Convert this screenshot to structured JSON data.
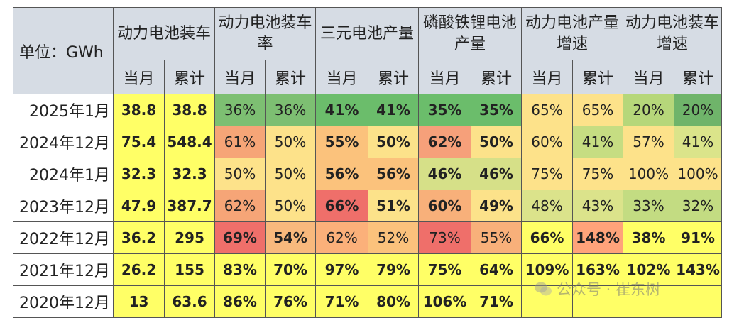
{
  "chart_data": {
    "type": "table",
    "unit_label": "单位：GWh",
    "groups": [
      "动力电池装车",
      "动力电池装车率",
      "三元电池产量",
      "磷酸铁锂电池产量",
      "动力电池产量增速",
      "动力电池装车增速"
    ],
    "subcolumns": [
      "当月",
      "累计"
    ],
    "rows": [
      {
        "label": "2025年1月",
        "cells": [
          "38.8",
          "38.8",
          "36%",
          "36%",
          "41%",
          "41%",
          "35%",
          "35%",
          "65%",
          "65%",
          "20%",
          "20%"
        ]
      },
      {
        "label": "2024年12月",
        "cells": [
          "75.4",
          "548.4",
          "61%",
          "50%",
          "55%",
          "50%",
          "62%",
          "50%",
          "60%",
          "41%",
          "57%",
          "41%"
        ]
      },
      {
        "label": "2024年1月",
        "cells": [
          "32.3",
          "32.3",
          "50%",
          "50%",
          "56%",
          "56%",
          "46%",
          "46%",
          "75%",
          "75%",
          "100%",
          "100%"
        ]
      },
      {
        "label": "2023年12月",
        "cells": [
          "47.9",
          "387.7",
          "62%",
          "50%",
          "66%",
          "51%",
          "60%",
          "49%",
          "48%",
          "43%",
          "33%",
          "32%"
        ]
      },
      {
        "label": "2022年12月",
        "cells": [
          "36.2",
          "295",
          "69%",
          "54%",
          "62%",
          "52%",
          "73%",
          "55%",
          "66%",
          "148%",
          "38%",
          "91%"
        ]
      },
      {
        "label": "2021年12月",
        "cells": [
          "26.2",
          "155",
          "83%",
          "70%",
          "97%",
          "79%",
          "75%",
          "64%",
          "109%",
          "163%",
          "102%",
          "143%"
        ]
      },
      {
        "label": "2020年12月",
        "cells": [
          "13",
          "63.6",
          "86%",
          "76%",
          "71%",
          "80%",
          "106%",
          "71%",
          "",
          "",
          "",
          ""
        ]
      }
    ],
    "cell_colors": [
      [
        "#ffff66",
        "#ffff66",
        "#7dbf72",
        "#7dbf72",
        "#6bbd6b",
        "#6bbd6b",
        "#6bbd6b",
        "#6bbd6b",
        "#fde28a",
        "#fde28a",
        "#b6d77a",
        "#6fb46a"
      ],
      [
        "#ffff66",
        "#ffff66",
        "#f6a577",
        "#fde28a",
        "#fbc27c",
        "#fce28a",
        "#f6a07a",
        "#fce28a",
        "#fde28a",
        "#c6dd82",
        "#fde28a",
        "#dbe48a"
      ],
      [
        "#ffff66",
        "#ffff66",
        "#fde28a",
        "#fde28a",
        "#fbc27c",
        "#fbc27c",
        "#d6e088",
        "#d6e088",
        "#fde28a",
        "#fde28a",
        "#fde28a",
        "#fde28a"
      ],
      [
        "#ffff66",
        "#ffff66",
        "#f6a577",
        "#fde28a",
        "#ef6f6a",
        "#fce28a",
        "#f8b07a",
        "#fce28a",
        "#dbe38b",
        "#dbe38b",
        "#c3dc82",
        "#c3dc82"
      ],
      [
        "#ffff66",
        "#ffff66",
        "#ef6f6a",
        "#f8b97d",
        "#fbb07a",
        "#fbc27c",
        "#ef6f6a",
        "#f8b07a",
        "#ffff66",
        "#ffa37a",
        "#ffff66",
        "#ffff66"
      ],
      [
        "#ffff66",
        "#ffff66",
        "#ffff66",
        "#ffff66",
        "#ffff66",
        "#ffff66",
        "#ffff66",
        "#ffff66",
        "#ffff66",
        "#ffff66",
        "#ffff66",
        "#ffff66"
      ],
      [
        "#ffff66",
        "#ffff66",
        "#ffff66",
        "#ffff66",
        "#ffff66",
        "#ffff66",
        "#ffff66",
        "#ffff66",
        "#ffff66",
        "#ffff66",
        "#ffff66",
        "#ffff66"
      ]
    ],
    "bold_cells": [
      [
        true,
        true,
        false,
        false,
        true,
        true,
        true,
        true,
        false,
        false,
        false,
        false
      ],
      [
        true,
        true,
        false,
        false,
        true,
        true,
        true,
        true,
        false,
        false,
        false,
        false
      ],
      [
        true,
        true,
        false,
        false,
        true,
        true,
        true,
        true,
        false,
        false,
        false,
        false
      ],
      [
        true,
        true,
        false,
        false,
        true,
        true,
        true,
        true,
        false,
        false,
        false,
        false
      ],
      [
        true,
        true,
        true,
        true,
        false,
        false,
        false,
        false,
        true,
        true,
        true,
        true
      ],
      [
        true,
        true,
        true,
        true,
        true,
        true,
        true,
        true,
        true,
        true,
        true,
        true
      ],
      [
        true,
        true,
        true,
        true,
        true,
        true,
        true,
        true,
        true,
        true,
        true,
        true
      ]
    ]
  },
  "watermark": "公众号 · 崔东树"
}
